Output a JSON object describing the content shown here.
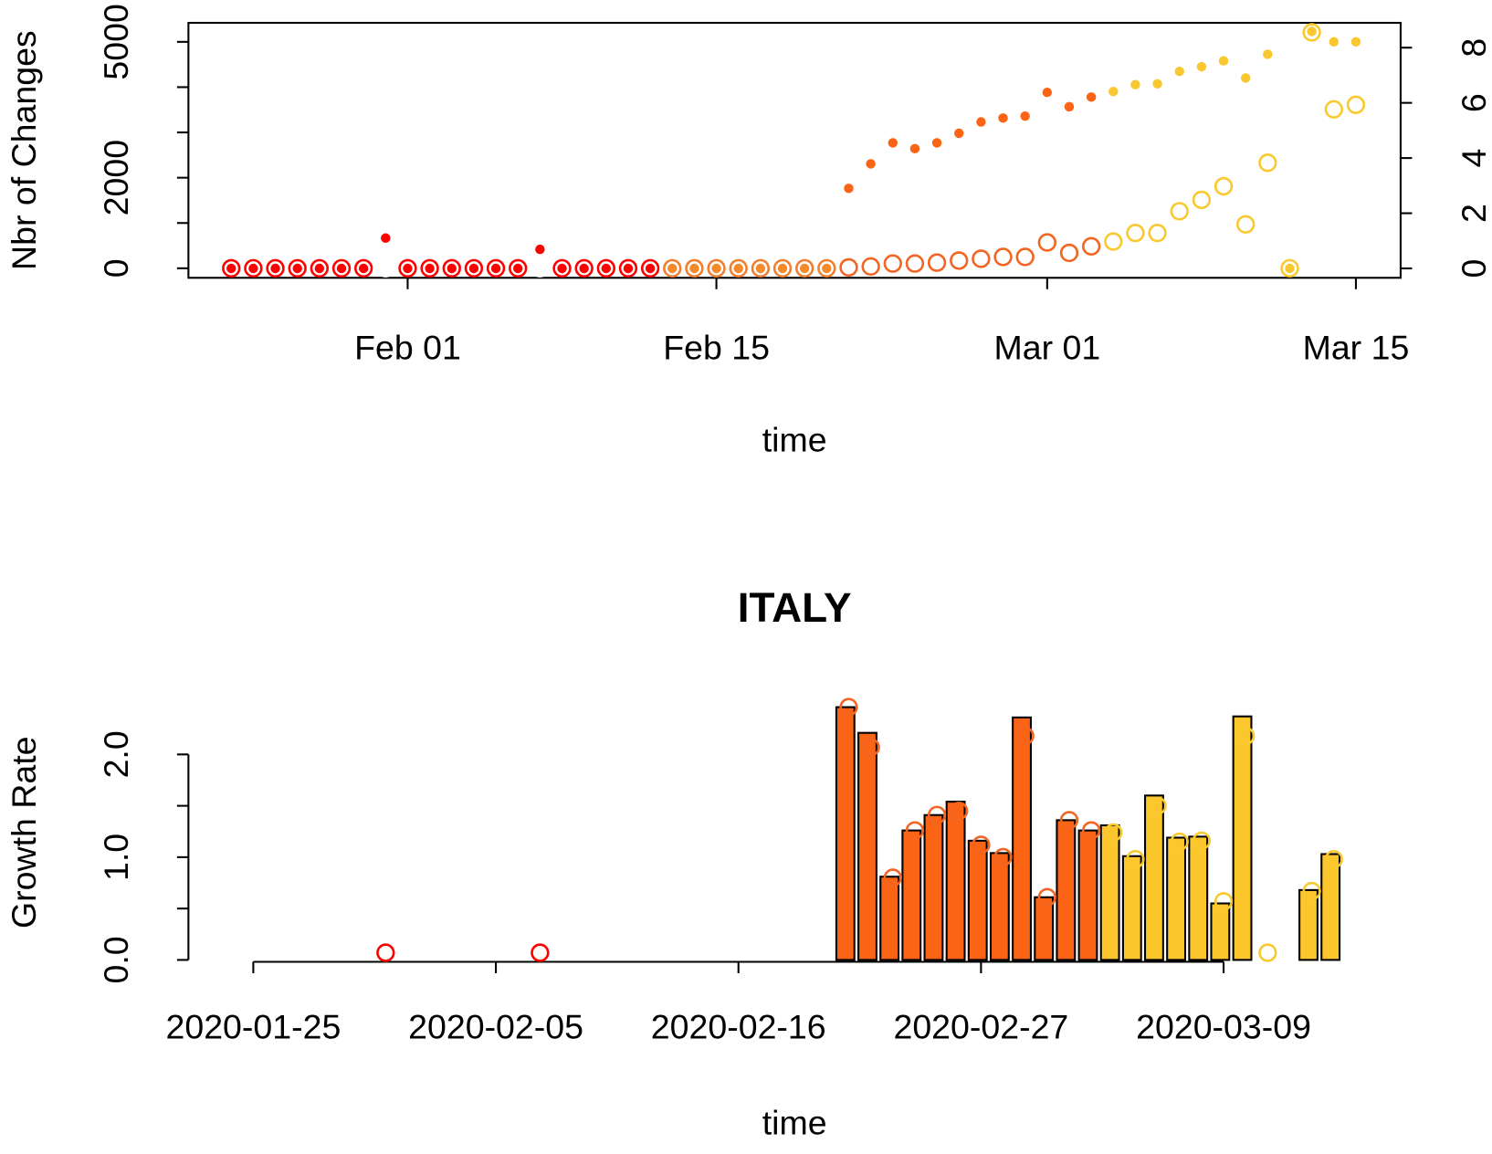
{
  "chart_data": [
    {
      "type": "scatter",
      "x_label": "time",
      "y_label": "Nbr of Changes",
      "x": [
        "Jan 24",
        "Jan 25",
        "Jan 26",
        "Jan 27",
        "Jan 28",
        "Jan 29",
        "Jan 30",
        "Jan 31",
        "Feb 01",
        "Feb 02",
        "Feb 03",
        "Feb 04",
        "Feb 05",
        "Feb 06",
        "Feb 07",
        "Feb 08",
        "Feb 09",
        "Feb 10",
        "Feb 11",
        "Feb 12",
        "Feb 13",
        "Feb 14",
        "Feb 15",
        "Feb 16",
        "Feb 17",
        "Feb 18",
        "Feb 19",
        "Feb 20",
        "Feb 21",
        "Feb 22",
        "Feb 23",
        "Feb 24",
        "Feb 25",
        "Feb 26",
        "Feb 27",
        "Feb 28",
        "Feb 29",
        "Mar 01",
        "Mar 02",
        "Mar 03",
        "Mar 04",
        "Mar 05",
        "Mar 06",
        "Mar 07",
        "Mar 08",
        "Mar 09",
        "Mar 10",
        "Mar 11",
        "Mar 12",
        "Mar 13",
        "Mar 14",
        "Mar 15"
      ],
      "xticks": [
        "Feb 01",
        "Feb 15",
        "Mar 01",
        "Mar 15"
      ],
      "ylim": [
        -210,
        5420
      ],
      "yticks": [
        0,
        2000,
        5000
      ],
      "yticks_minor": [
        1000,
        3000,
        4000
      ],
      "y2lim": [
        -0.34,
        8.9
      ],
      "y2ticks": [
        0,
        2,
        4,
        6,
        8
      ],
      "series": [
        {
          "marker": "open",
          "values": [
            0,
            0,
            0,
            0,
            0,
            0,
            0,
            0,
            0,
            0,
            0,
            0,
            0,
            0,
            0,
            0,
            0,
            0,
            0,
            0,
            0,
            0,
            0,
            0,
            0,
            0,
            0,
            0,
            20,
            40,
            105,
            105,
            125,
            170,
            210,
            250,
            250,
            570,
            340,
            485,
            590,
            780,
            780,
            1260,
            1510,
            1810,
            970,
            2330,
            0,
            5210,
            3510,
            3610
          ],
          "colors": [
            "#ff0000",
            "#ff0000",
            "#ff0000",
            "#ff0000",
            "#ff0000",
            "#ff0000",
            "#ff0000",
            "#ffffff",
            "#ff0000",
            "#ff0000",
            "#ff0000",
            "#ff0000",
            "#ff0000",
            "#ff0000",
            "#ffffff",
            "#ff0000",
            "#ff0000",
            "#ff0000",
            "#ff0000",
            "#ff0000",
            "#f08030",
            "#f08030",
            "#f08030",
            "#f08030",
            "#f08030",
            "#f08030",
            "#f08030",
            "#f08030",
            "#f26522",
            "#f26522",
            "#f26522",
            "#f26522",
            "#f26522",
            "#f26522",
            "#f26522",
            "#f26522",
            "#f26522",
            "#f26522",
            "#f26522",
            "#f26522",
            "#f9c930",
            "#f9c930",
            "#f9c930",
            "#f9c930",
            "#f9c930",
            "#f9c930",
            "#f9c930",
            "#f9c930",
            "#f9c930",
            "#f9c930",
            "#f9c930",
            "#f9c930"
          ]
        },
        {
          "marker": "filled",
          "axis": "y2",
          "values": [
            0,
            0,
            0,
            0,
            0,
            0,
            0,
            1.1,
            0,
            0,
            0,
            0,
            0,
            0,
            0.69,
            0,
            0,
            0,
            0,
            0,
            0,
            0,
            0,
            0,
            0,
            0,
            0,
            0,
            2.9,
            3.79,
            4.55,
            4.34,
            4.55,
            4.9,
            5.31,
            5.45,
            5.52,
            6.38,
            5.86,
            6.21,
            6.41,
            6.66,
            6.69,
            7.14,
            7.31,
            7.52,
            6.9,
            7.76,
            0,
            8.59,
            8.21,
            8.21
          ],
          "colors": [
            "#ff0000",
            "#ff0000",
            "#ff0000",
            "#ff0000",
            "#ff0000",
            "#ff0000",
            "#ff0000",
            "#ff0000",
            "#ff0000",
            "#ff0000",
            "#ff0000",
            "#ff0000",
            "#ff0000",
            "#ff0000",
            "#ff0000",
            "#ff0000",
            "#ff0000",
            "#ff0000",
            "#ff0000",
            "#ff0000",
            "#f58a2a",
            "#f58a2a",
            "#f58a2a",
            "#f58a2a",
            "#f58a2a",
            "#f58a2a",
            "#f58a2a",
            "#f58a2a",
            "#fa6414",
            "#fa6414",
            "#fa6414",
            "#fa6414",
            "#fa6414",
            "#fa6414",
            "#fa6414",
            "#fa6414",
            "#fa6414",
            "#fa6414",
            "#fa6414",
            "#fa6414",
            "#f9c72f",
            "#f9c72f",
            "#f9c72f",
            "#f9c72f",
            "#f9c72f",
            "#f9c72f",
            "#f9c72f",
            "#f9c72f",
            "#f9c72f",
            "#f9c72f",
            "#f9c72f",
            "#f9c72f"
          ]
        }
      ]
    },
    {
      "type": "bar",
      "title": "ITALY",
      "x_label": "time",
      "y_label": "Growth Rate",
      "x": [
        "2020-01-24",
        "2020-01-25",
        "2020-01-26",
        "2020-01-27",
        "2020-01-28",
        "2020-01-29",
        "2020-01-30",
        "2020-01-31",
        "2020-02-01",
        "2020-02-02",
        "2020-02-03",
        "2020-02-04",
        "2020-02-05",
        "2020-02-06",
        "2020-02-07",
        "2020-02-08",
        "2020-02-09",
        "2020-02-10",
        "2020-02-11",
        "2020-02-12",
        "2020-02-13",
        "2020-02-14",
        "2020-02-15",
        "2020-02-16",
        "2020-02-17",
        "2020-02-18",
        "2020-02-19",
        "2020-02-20",
        "2020-02-21",
        "2020-02-22",
        "2020-02-23",
        "2020-02-24",
        "2020-02-25",
        "2020-02-26",
        "2020-02-27",
        "2020-02-28",
        "2020-02-29",
        "2020-03-01",
        "2020-03-02",
        "2020-03-03",
        "2020-03-04",
        "2020-03-05",
        "2020-03-06",
        "2020-03-07",
        "2020-03-08",
        "2020-03-09",
        "2020-03-10",
        "2020-03-11",
        "2020-03-12",
        "2020-03-13",
        "2020-03-14",
        "2020-03-15"
      ],
      "xticks": [
        "2020-01-25",
        "2020-02-05",
        "2020-02-16",
        "2020-02-27",
        "2020-03-09"
      ],
      "ylim": [
        0,
        2.5
      ],
      "yticks": [
        {
          "value": 0,
          "label": "0.0"
        },
        {
          "value": 1,
          "label": "1.0"
        },
        {
          "value": 2,
          "label": "2.0"
        }
      ],
      "yticks_minor": [
        0.5,
        1.5
      ],
      "series": [
        {
          "marker": "bar",
          "values": [
            null,
            null,
            null,
            null,
            null,
            null,
            null,
            0,
            null,
            null,
            null,
            null,
            null,
            null,
            0,
            null,
            null,
            null,
            null,
            null,
            null,
            null,
            null,
            null,
            null,
            null,
            null,
            null,
            2.46,
            2.21,
            0.81,
            1.26,
            1.41,
            1.54,
            1.16,
            1.04,
            2.36,
            0.61,
            1.36,
            1.26,
            1.31,
            1.01,
            1.6,
            1.19,
            1.2,
            0.55,
            2.37,
            0,
            null,
            0.68,
            1.03,
            null
          ],
          "colors": [
            "#fa6414",
            "#fa6414",
            "#fa6414",
            "#fa6414",
            "#fa6414",
            "#fa6414",
            "#fa6414",
            "#fa6414",
            "#fa6414",
            "#fa6414",
            "#fa6414",
            "#fa6414",
            "#fa6414",
            "#fa6414",
            "#fa6414",
            "#fa6414",
            "#fa6414",
            "#fa6414",
            "#fa6414",
            "#fa6414",
            "#fa6414",
            "#fa6414",
            "#fa6414",
            "#fa6414",
            "#fa6414",
            "#fa6414",
            "#fa6414",
            "#fa6414",
            "#fa6414",
            "#fa6414",
            "#fa6414",
            "#fa6414",
            "#fa6414",
            "#fa6414",
            "#fa6414",
            "#fa6414",
            "#fa6414",
            "#fa6414",
            "#fa6414",
            "#fa6414",
            "#fcc72c",
            "#fcc72c",
            "#fcc72c",
            "#fcc72c",
            "#fcc72c",
            "#fcc72c",
            "#fcc72c",
            "#fcc72c",
            "#fcc72c",
            "#fcc72c",
            "#fcc72c",
            "#fcc72c"
          ]
        },
        {
          "marker": "open",
          "values": [
            null,
            null,
            null,
            null,
            null,
            null,
            null,
            0.07,
            null,
            null,
            null,
            null,
            null,
            null,
            0.07,
            null,
            null,
            null,
            null,
            null,
            null,
            null,
            null,
            null,
            null,
            null,
            null,
            null,
            2.46,
            2.07,
            0.8,
            1.26,
            1.41,
            1.45,
            1.12,
            1.0,
            2.18,
            0.61,
            1.36,
            1.26,
            1.24,
            0.98,
            1.5,
            1.15,
            1.16,
            0.57,
            2.18,
            0.07,
            null,
            0.67,
            0.98,
            null
          ],
          "colors": [
            "#ff0000",
            "#ff0000",
            "#ff0000",
            "#ff0000",
            "#ff0000",
            "#ff0000",
            "#ff0000",
            "#ff0000",
            "#ff0000",
            "#ff0000",
            "#ff0000",
            "#ff0000",
            "#ff0000",
            "#ff0000",
            "#ff0000",
            "#ff0000",
            "#ff0000",
            "#ff0000",
            "#ff0000",
            "#ff0000",
            "#ff0000",
            "#ff0000",
            "#ff0000",
            "#ff0000",
            "#ff0000",
            "#ff0000",
            "#ff0000",
            "#ff0000",
            "#f26522",
            "#f26522",
            "#f26522",
            "#f26522",
            "#f26522",
            "#f26522",
            "#f26522",
            "#f26522",
            "#f26522",
            "#f26522",
            "#f26522",
            "#f26522",
            "#f9c930",
            "#f9c930",
            "#f9c930",
            "#f9c930",
            "#f9c930",
            "#f9c930",
            "#f9c930",
            "#f9c930",
            "#f9c930",
            "#f9c930",
            "#f9c930",
            "#f9c930"
          ]
        }
      ]
    }
  ]
}
